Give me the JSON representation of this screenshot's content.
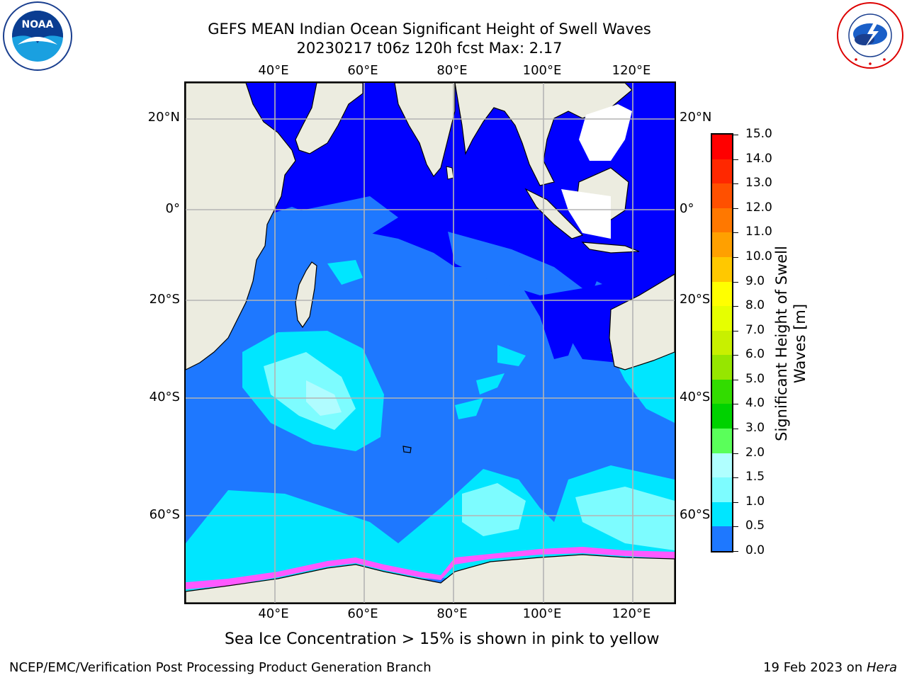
{
  "header": {
    "title_line1": "GEFS MEAN Indian Ocean Significant Height of Swell Waves",
    "title_line2": "20230217 t06z 120h fcst   Max: 2.17"
  },
  "logos": {
    "left": {
      "text": "NOAA",
      "ring_text": "NATIONAL OCEANIC AND ATMOSPHERIC ADMINISTRATION · U.S. DEPARTMENT OF COMMERCE"
    },
    "right": {
      "ring_text": "NATIONAL WEATHER SERVICE"
    }
  },
  "map": {
    "lon_labels": [
      "40°E",
      "60°E",
      "80°E",
      "100°E",
      "120°E"
    ],
    "lat_labels_left": [
      "20°N",
      "0°",
      "20°S",
      "40°S",
      "60°S"
    ],
    "lat_labels_right": [
      "20°N",
      "0°",
      "20°S",
      "40°S",
      "60°S"
    ],
    "colors": {
      "land": "#ecece0",
      "ocean_deep_blue": "#0000ff",
      "ocean_blue": "#1e78ff",
      "cyan": "#00e6ff",
      "light_cyan": "#7dfcff",
      "pale_cyan": "#b0fcff",
      "ice_pink": "#ff59ff",
      "grid": "#b4b4b4"
    }
  },
  "colorbar": {
    "tick_labels": [
      "15.0",
      "14.0",
      "13.0",
      "12.0",
      "11.0",
      "10.0",
      "9.0",
      "8.0",
      "7.0",
      "6.0",
      "5.0",
      "4.0",
      "3.0",
      "2.0",
      "1.5",
      "1.0",
      "0.5",
      "0.0"
    ],
    "colors_top_to_bottom": [
      "#ff0000",
      "#ff2800",
      "#ff5000",
      "#ff7800",
      "#ffa000",
      "#ffc800",
      "#ffff00",
      "#e6ff00",
      "#c8f000",
      "#96e600",
      "#32dc00",
      "#00d200",
      "#5aff5a",
      "#b0ffff",
      "#7dfcff",
      "#00e6ff",
      "#1e78ff",
      "#0000ff"
    ],
    "axis_label_line1": "Significant Height of Swell",
    "axis_label_line2": "Waves [m]"
  },
  "caption": "Sea Ice Concentration > 15% is shown in pink to yellow",
  "footer": {
    "left": "NCEP/EMC/Verification Post Processing Product Generation Branch",
    "date": "19 Feb 2023 on ",
    "machine": "Hera"
  }
}
